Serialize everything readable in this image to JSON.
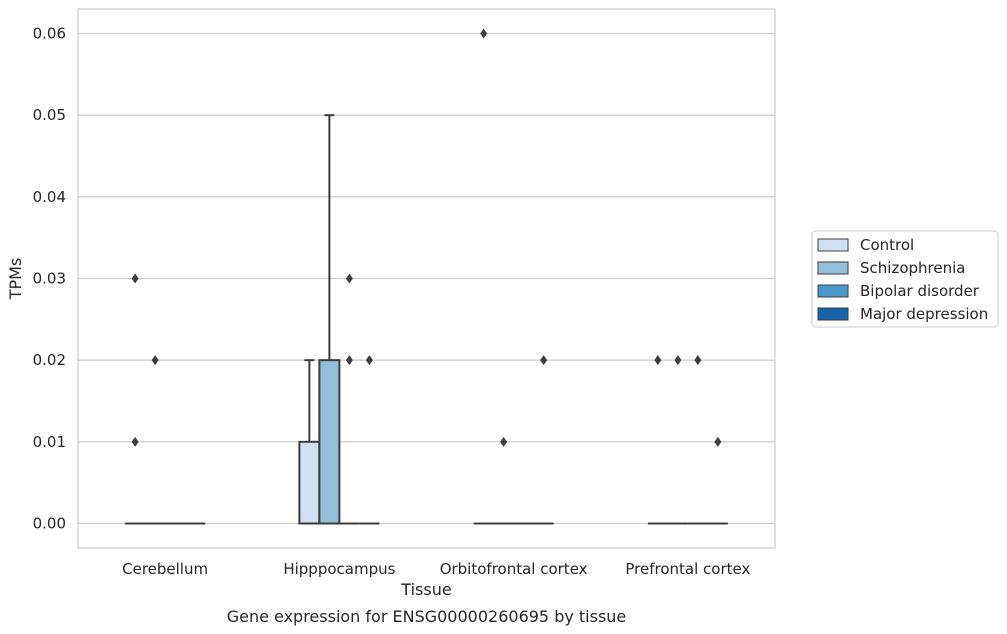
{
  "chart_data": {
    "type": "box",
    "title": "",
    "caption": "Gene expression for ENSG00000260695 by tissue",
    "xlabel": "Tissue",
    "ylabel": "TPMs",
    "ylim": [
      -0.003,
      0.063
    ],
    "yticks": [
      "0.00",
      "0.01",
      "0.02",
      "0.03",
      "0.04",
      "0.05",
      "0.06"
    ],
    "grid": "horizontal",
    "legend_position": "right",
    "categories": [
      "Cerebellum",
      "Hipppocampus",
      "Orbitofrontal cortex",
      "Prefrontal cortex"
    ],
    "series": [
      {
        "name": "Control",
        "color": "#cfe1f2",
        "boxes": [
          {
            "q1": 0,
            "median": 0,
            "q3": 0,
            "whisker_low": 0,
            "whisker_high": 0,
            "outliers": [
              0.03,
              0.01
            ]
          },
          {
            "q1": 0,
            "median": 0,
            "q3": 0.01,
            "whisker_low": 0,
            "whisker_high": 0.02,
            "outliers": []
          },
          {
            "q1": 0,
            "median": 0,
            "q3": 0,
            "whisker_low": 0,
            "whisker_high": 0,
            "outliers": [
              0.06
            ]
          },
          {
            "q1": 0,
            "median": 0,
            "q3": 0,
            "whisker_low": 0,
            "whisker_high": 0,
            "outliers": [
              0.02
            ]
          }
        ]
      },
      {
        "name": "Schizophrenia",
        "color": "#93bfdb",
        "boxes": [
          {
            "q1": 0,
            "median": 0,
            "q3": 0,
            "whisker_low": 0,
            "whisker_high": 0,
            "outliers": [
              0.02
            ]
          },
          {
            "q1": 0,
            "median": 0,
            "q3": 0.02,
            "whisker_low": 0,
            "whisker_high": 0.05,
            "outliers": []
          },
          {
            "q1": 0,
            "median": 0,
            "q3": 0,
            "whisker_low": 0,
            "whisker_high": 0,
            "outliers": [
              0.01
            ]
          },
          {
            "q1": 0,
            "median": 0,
            "q3": 0,
            "whisker_low": 0,
            "whisker_high": 0,
            "outliers": [
              0.02
            ]
          }
        ]
      },
      {
        "name": "Bipolar disorder",
        "color": "#4a98c9",
        "boxes": [
          {
            "q1": 0,
            "median": 0,
            "q3": 0,
            "whisker_low": 0,
            "whisker_high": 0,
            "outliers": []
          },
          {
            "q1": 0,
            "median": 0,
            "q3": 0,
            "whisker_low": 0,
            "whisker_high": 0,
            "outliers": [
              0.03,
              0.02
            ]
          },
          {
            "q1": 0,
            "median": 0,
            "q3": 0,
            "whisker_low": 0,
            "whisker_high": 0,
            "outliers": []
          },
          {
            "q1": 0,
            "median": 0,
            "q3": 0,
            "whisker_low": 0,
            "whisker_high": 0,
            "outliers": [
              0.02
            ]
          }
        ]
      },
      {
        "name": "Major depression",
        "color": "#1764ab",
        "boxes": [
          {
            "q1": 0,
            "median": 0,
            "q3": 0,
            "whisker_low": 0,
            "whisker_high": 0,
            "outliers": []
          },
          {
            "q1": 0,
            "median": 0,
            "q3": 0,
            "whisker_low": 0,
            "whisker_high": 0,
            "outliers": [
              0.02
            ]
          },
          {
            "q1": 0,
            "median": 0,
            "q3": 0,
            "whisker_low": 0,
            "whisker_high": 0,
            "outliers": [
              0.02
            ]
          },
          {
            "q1": 0,
            "median": 0,
            "q3": 0,
            "whisker_low": 0,
            "whisker_high": 0,
            "outliers": [
              0.01
            ]
          }
        ]
      }
    ]
  }
}
